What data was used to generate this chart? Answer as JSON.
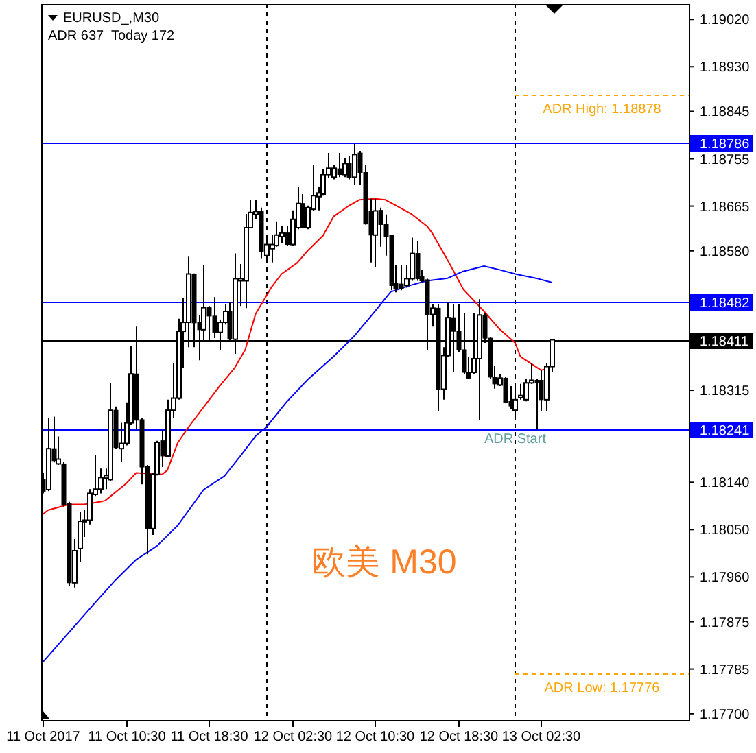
{
  "chart_data": {
    "type": "candlestick",
    "title": "EURUSD_,M30",
    "subtitle": "ADR 637  Today 172",
    "color": "#000000",
    "x": [
      "2017-10-11T02:30",
      "2017-10-11T03:00",
      "2017-10-11T03:30",
      "2017-10-11T04:00",
      "2017-10-11T04:30",
      "2017-10-11T05:00",
      "2017-10-11T05:30",
      "2017-10-11T06:00",
      "2017-10-11T06:30",
      "2017-10-11T07:00",
      "2017-10-11T07:30",
      "2017-10-11T08:00",
      "2017-10-11T08:30",
      "2017-10-11T09:00",
      "2017-10-11T09:30",
      "2017-10-11T10:00",
      "2017-10-11T10:30",
      "2017-10-11T11:00",
      "2017-10-11T11:30",
      "2017-10-11T12:00",
      "2017-10-11T12:30",
      "2017-10-11T13:00",
      "2017-10-11T13:30",
      "2017-10-11T14:00",
      "2017-10-11T14:30",
      "2017-10-11T15:00",
      "2017-10-11T15:30",
      "2017-10-11T16:00",
      "2017-10-11T16:30",
      "2017-10-11T17:00",
      "2017-10-11T17:30",
      "2017-10-11T18:00",
      "2017-10-11T18:30",
      "2017-10-11T19:00",
      "2017-10-11T19:30",
      "2017-10-11T20:00",
      "2017-10-11T20:30",
      "2017-10-11T21:00",
      "2017-10-11T21:30",
      "2017-10-11T22:00",
      "2017-10-11T22:30",
      "2017-10-11T23:00",
      "2017-10-11T23:30",
      "2017-10-12T00:00",
      "2017-10-12T00:30",
      "2017-10-12T01:00",
      "2017-10-12T01:30",
      "2017-10-12T02:00",
      "2017-10-12T02:30",
      "2017-10-12T03:00",
      "2017-10-12T03:30",
      "2017-10-12T04:00",
      "2017-10-12T04:30",
      "2017-10-12T05:00",
      "2017-10-12T05:30",
      "2017-10-12T06:00",
      "2017-10-12T06:30",
      "2017-10-12T07:00",
      "2017-10-12T07:30",
      "2017-10-12T08:00",
      "2017-10-12T08:30",
      "2017-10-12T09:00",
      "2017-10-12T09:30",
      "2017-10-12T10:00",
      "2017-10-12T10:30",
      "2017-10-12T11:00",
      "2017-10-12T11:30",
      "2017-10-12T12:00",
      "2017-10-12T12:30",
      "2017-10-12T13:00",
      "2017-10-12T13:30",
      "2017-10-12T14:00",
      "2017-10-12T14:30",
      "2017-10-12T15:00",
      "2017-10-12T15:30",
      "2017-10-12T16:00",
      "2017-10-12T16:30",
      "2017-10-12T17:00",
      "2017-10-12T17:30",
      "2017-10-12T18:00",
      "2017-10-12T18:30",
      "2017-10-12T19:00",
      "2017-10-12T19:30",
      "2017-10-12T20:00",
      "2017-10-12T20:30",
      "2017-10-12T21:00",
      "2017-10-12T21:30",
      "2017-10-12T22:00",
      "2017-10-12T22:30",
      "2017-10-12T23:00",
      "2017-10-12T23:30",
      "2017-10-13T00:00",
      "2017-10-13T00:30",
      "2017-10-13T01:00",
      "2017-10-13T01:30",
      "2017-10-13T02:00",
      "2017-10-13T02:30",
      "2017-10-13T03:00",
      "2017-10-13T03:30"
    ],
    "ohlc": [
      [
        1.18145,
        1.18158,
        1.18119,
        1.18123
      ],
      [
        1.18126,
        1.18262,
        1.18123,
        1.18204
      ],
      [
        1.18204,
        1.18265,
        1.18178,
        1.18181
      ],
      [
        1.18175,
        1.18227,
        1.18173,
        1.18184
      ],
      [
        1.18175,
        1.18179,
        1.18094,
        1.18097
      ],
      [
        1.181,
        1.18103,
        1.17943,
        1.17949
      ],
      [
        1.17949,
        1.18032,
        1.1794,
        1.1801
      ],
      [
        1.18014,
        1.18084,
        1.17988,
        1.18066
      ],
      [
        1.18065,
        1.18088,
        1.18036,
        1.18068
      ],
      [
        1.18068,
        1.18127,
        1.1806,
        1.18119
      ],
      [
        1.18117,
        1.18192,
        1.18114,
        1.18127
      ],
      [
        1.18127,
        1.18166,
        1.18119,
        1.18149
      ],
      [
        1.18148,
        1.18166,
        1.18127,
        1.18153
      ],
      [
        1.18145,
        1.18329,
        1.18143,
        1.18277
      ],
      [
        1.18277,
        1.18284,
        1.18204,
        1.18206
      ],
      [
        1.18204,
        1.18253,
        1.18179,
        1.18214
      ],
      [
        1.18214,
        1.18292,
        1.1821,
        1.18253
      ],
      [
        1.18253,
        1.18399,
        1.18249,
        1.18346
      ],
      [
        1.18346,
        1.18436,
        1.18242,
        1.18258
      ],
      [
        1.18259,
        1.18262,
        1.18136,
        1.18169
      ],
      [
        1.18171,
        1.18173,
        1.18003,
        1.18052
      ],
      [
        1.18052,
        1.18158,
        1.1804,
        1.18155
      ],
      [
        1.18155,
        1.18219,
        1.18153,
        1.18216
      ],
      [
        1.18219,
        1.18239,
        1.18169,
        1.1819
      ],
      [
        1.1819,
        1.18297,
        1.18188,
        1.18277
      ],
      [
        1.18277,
        1.18366,
        1.18262,
        1.183
      ],
      [
        1.183,
        1.18451,
        1.18297,
        1.18427
      ],
      [
        1.18427,
        1.18491,
        1.18358,
        1.18444
      ],
      [
        1.18444,
        1.18569,
        1.18397,
        1.18536
      ],
      [
        1.18536,
        1.18537,
        1.18397,
        1.18443
      ],
      [
        1.18444,
        1.18458,
        1.18372,
        1.1843
      ],
      [
        1.1843,
        1.18553,
        1.1841,
        1.18472
      ],
      [
        1.18472,
        1.18475,
        1.1841,
        1.18456
      ],
      [
        1.18456,
        1.18492,
        1.18414,
        1.18425
      ],
      [
        1.18425,
        1.18449,
        1.18392,
        1.18444
      ],
      [
        1.18444,
        1.18479,
        1.1844,
        1.18465
      ],
      [
        1.18465,
        1.18482,
        1.1841,
        1.18412
      ],
      [
        1.18412,
        1.18575,
        1.18384,
        1.18527
      ],
      [
        1.18523,
        1.18555,
        1.18475,
        1.18527
      ],
      [
        1.18523,
        1.1865,
        1.18471,
        1.18624
      ],
      [
        1.18624,
        1.18677,
        1.18623,
        1.18653
      ],
      [
        1.18649,
        1.18677,
        1.1864,
        1.18655
      ],
      [
        1.18655,
        1.18662,
        1.18566,
        1.18579
      ],
      [
        1.18571,
        1.1861,
        1.18559,
        1.18592
      ],
      [
        1.18584,
        1.1861,
        1.18558,
        1.18592
      ],
      [
        1.1859,
        1.18636,
        1.18588,
        1.1861
      ],
      [
        1.18607,
        1.18627,
        1.18595,
        1.18614
      ],
      [
        1.18614,
        1.18627,
        1.1859,
        1.18592
      ],
      [
        1.18592,
        1.18657,
        1.1859,
        1.1864
      ],
      [
        1.18624,
        1.18701,
        1.18621,
        1.1867
      ],
      [
        1.1867,
        1.18688,
        1.18623,
        1.18624
      ],
      [
        1.18624,
        1.18666,
        1.18621,
        1.18662
      ],
      [
        1.18659,
        1.18743,
        1.18656,
        1.18685
      ],
      [
        1.18683,
        1.18701,
        1.18657,
        1.1869
      ],
      [
        1.18688,
        1.18736,
        1.18685,
        1.18725
      ],
      [
        1.18725,
        1.18766,
        1.18718,
        1.18737
      ],
      [
        1.1872,
        1.18744,
        1.18716,
        1.18737
      ],
      [
        1.18736,
        1.18766,
        1.1872,
        1.18725
      ],
      [
        1.18725,
        1.18757,
        1.1872,
        1.18746
      ],
      [
        1.18746,
        1.1876,
        1.18716,
        1.1872
      ],
      [
        1.1872,
        1.18783,
        1.18705,
        1.18763
      ],
      [
        1.18766,
        1.1877,
        1.18705,
        1.18729
      ],
      [
        1.18729,
        1.18744,
        1.1863,
        1.18631
      ],
      [
        1.18656,
        1.18679,
        1.18558,
        1.1861
      ],
      [
        1.1861,
        1.18679,
        1.18549,
        1.18656
      ],
      [
        1.18657,
        1.18662,
        1.18588,
        1.1863
      ],
      [
        1.1863,
        1.18649,
        1.18571,
        1.18607
      ],
      [
        1.1861,
        1.1861,
        1.18505,
        1.18514
      ],
      [
        1.18518,
        1.18553,
        1.18501,
        1.18508
      ],
      [
        1.18517,
        1.18553,
        1.18505,
        1.18508
      ],
      [
        1.18514,
        1.18553,
        1.1851,
        1.18527
      ],
      [
        1.18527,
        1.18605,
        1.18523,
        1.18575
      ],
      [
        1.18575,
        1.18598,
        1.18523,
        1.18527
      ],
      [
        1.18531,
        1.18544,
        1.1852,
        1.18523
      ],
      [
        1.18525,
        1.18527,
        1.18392,
        1.18459
      ],
      [
        1.18459,
        1.18479,
        1.18436,
        1.18471
      ],
      [
        1.18471,
        1.18479,
        1.18275,
        1.18317
      ],
      [
        1.18317,
        1.18397,
        1.18297,
        1.18381
      ],
      [
        1.18381,
        1.18482,
        1.18378,
        1.18453
      ],
      [
        1.18453,
        1.18479,
        1.18349,
        1.18427
      ],
      [
        1.18427,
        1.18479,
        1.18388,
        1.18392
      ],
      [
        1.18392,
        1.18462,
        1.18345,
        1.18349
      ],
      [
        1.18349,
        1.18379,
        1.18336,
        1.18338
      ],
      [
        1.18349,
        1.18462,
        1.18345,
        1.18375
      ],
      [
        1.18375,
        1.18488,
        1.18258,
        1.18458
      ],
      [
        1.18458,
        1.18462,
        1.18405,
        1.18414
      ],
      [
        1.18414,
        1.18416,
        1.18336,
        1.1834
      ],
      [
        1.1834,
        1.18362,
        1.18318,
        1.18327
      ],
      [
        1.18325,
        1.18345,
        1.18323,
        1.18338
      ],
      [
        1.18338,
        1.1834,
        1.18291,
        1.18292
      ],
      [
        1.18294,
        1.18323,
        1.18279,
        1.18285
      ],
      [
        1.18277,
        1.18323,
        1.18258,
        1.18297
      ],
      [
        1.18301,
        1.18327,
        1.18297,
        1.18305
      ],
      [
        1.18297,
        1.18336,
        1.18294,
        1.18329
      ],
      [
        1.18329,
        1.18366,
        1.18327,
        1.18334
      ],
      [
        1.18334,
        1.18336,
        1.1824,
        1.18329
      ],
      [
        1.18334,
        1.18353,
        1.18275,
        1.18297
      ],
      [
        1.18297,
        1.18366,
        1.18275,
        1.1836
      ],
      [
        1.1836,
        1.18411,
        1.18349,
        1.18411
      ]
    ],
    "series": [
      {
        "type": "line",
        "color": "#ff0000",
        "x": [
          "2017-10-11T02:30",
          "2017-10-11T03:00",
          "2017-10-11T05:00",
          "2017-10-11T06:30",
          "2017-10-11T08:00",
          "2017-10-11T08:30",
          "2017-10-11T10:30",
          "2017-10-11T11:30",
          "2017-10-11T14:00",
          "2017-10-11T14:30",
          "2017-10-11T15:30",
          "2017-10-11T16:30",
          "2017-10-11T18:00",
          "2017-10-11T19:00",
          "2017-10-11T19:30",
          "2017-10-11T21:00",
          "2017-10-11T22:00",
          "2017-10-11T23:00",
          "2017-10-12T00:30",
          "2017-10-12T01:30",
          "2017-10-12T03:00",
          "2017-10-12T04:00",
          "2017-10-12T05:30",
          "2017-10-12T06:30",
          "2017-10-12T08:00",
          "2017-10-12T09:00",
          "2017-10-12T10:30",
          "2017-10-12T11:30",
          "2017-10-12T13:00",
          "2017-10-12T14:00",
          "2017-10-12T15:30",
          "2017-10-12T16:00",
          "2017-10-12T17:30",
          "2017-10-12T18:00",
          "2017-10-12T19:00",
          "2017-10-12T21:00",
          "2017-10-12T22:30",
          "2017-10-13T00:00",
          "2017-10-13T00:30",
          "2017-10-13T01:30",
          "2017-10-13T02:30",
          "2017-10-13T03:00"
        ],
        "values": [
          1.18079,
          1.18087,
          1.18098,
          1.18098,
          1.18103,
          1.18105,
          1.18137,
          1.18158,
          1.18155,
          1.18163,
          1.18215,
          1.18244,
          1.18283,
          1.18309,
          1.18322,
          1.18358,
          1.18392,
          1.1846,
          1.1851,
          1.18536,
          1.18557,
          1.1858,
          1.18609,
          1.18645,
          1.18666,
          1.18677,
          1.18679,
          1.18677,
          1.18661,
          1.1865,
          1.18627,
          1.18614,
          1.18562,
          1.18544,
          1.18507,
          1.18465,
          1.18431,
          1.18405,
          1.18379,
          1.18366,
          1.18353,
          1.18356
        ]
      },
      {
        "type": "line",
        "color": "#0000ff",
        "x": [
          "2017-10-11T02:30",
          "2017-10-11T07:30",
          "2017-10-11T09:30",
          "2017-10-11T11:30",
          "2017-10-11T13:30",
          "2017-10-11T15:30",
          "2017-10-11T18:00",
          "2017-10-11T20:00",
          "2017-10-11T21:30",
          "2017-10-11T23:00",
          "2017-10-12T00:00",
          "2017-10-12T02:00",
          "2017-10-12T04:00",
          "2017-10-12T06:30",
          "2017-10-12T08:30",
          "2017-10-12T10:30",
          "2017-10-12T12:00",
          "2017-10-12T14:00",
          "2017-10-12T15:30",
          "2017-10-12T17:30",
          "2017-10-12T19:00",
          "2017-10-12T21:00",
          "2017-10-12T22:30",
          "2017-10-13T00:00",
          "2017-10-13T02:00",
          "2017-10-13T03:30"
        ],
        "values": [
          1.17798,
          1.1791,
          1.17954,
          1.17993,
          1.18019,
          1.18058,
          1.18126,
          1.18152,
          1.18189,
          1.18228,
          1.18244,
          1.18293,
          1.18335,
          1.18379,
          1.18418,
          1.18465,
          1.18502,
          1.18515,
          1.18523,
          1.18528,
          1.18541,
          1.18551,
          1.18544,
          1.18536,
          1.18528,
          1.1852
        ]
      }
    ],
    "xlim": [
      "2017-10-11T02:21",
      "2017-10-13T16:43"
    ],
    "xticks": [
      {
        "value": "2017-10-11T02:30",
        "label": "11 Oct 2017"
      },
      {
        "value": "2017-10-11T10:30",
        "label": "11 Oct 10:30"
      },
      {
        "value": "2017-10-11T18:30",
        "label": "11 Oct 18:30"
      },
      {
        "value": "2017-10-12T02:30",
        "label": "12 Oct 02:30"
      },
      {
        "value": "2017-10-12T10:30",
        "label": "12 Oct 10:30"
      },
      {
        "value": "2017-10-12T18:30",
        "label": "12 Oct 18:30"
      },
      {
        "value": "2017-10-13T02:30",
        "label": "13 Oct 02:30"
      }
    ],
    "ylim": [
      1.17688,
      1.19049
    ],
    "yticks": [
      {
        "value": 1.1902,
        "label": "1.19020"
      },
      {
        "value": 1.1893,
        "label": "1.18930"
      },
      {
        "value": 1.18845,
        "label": "1.18845"
      },
      {
        "value": 1.18755,
        "label": "1.18755"
      },
      {
        "value": 1.18665,
        "label": "1.18665"
      },
      {
        "value": 1.1858,
        "label": "1.18580"
      },
      {
        "value": 1.18315,
        "label": "1.18315"
      },
      {
        "value": 1.1814,
        "label": "1.18140"
      },
      {
        "value": 1.1805,
        "label": "1.18050"
      },
      {
        "value": 1.1796,
        "label": "1.17960"
      },
      {
        "value": 1.17875,
        "label": "1.17875"
      },
      {
        "value": 1.17785,
        "label": "1.17785"
      },
      {
        "value": 1.177,
        "label": "1.17700"
      }
    ],
    "ref_lines": [
      {
        "axis": "x",
        "value": "2017-10-12T00:00",
        "color": "#000000",
        "line_style": "dashed"
      },
      {
        "axis": "x",
        "value": "2017-10-13T00:00",
        "color": "#000000",
        "line_style": "dashed"
      },
      {
        "axis": "y",
        "value": 1.18786,
        "label": "1.18786",
        "color": "#0000ff"
      },
      {
        "axis": "y",
        "value": 1.18482,
        "label": "1.18482",
        "color": "#0000ff"
      },
      {
        "axis": "y",
        "value": 1.18241,
        "label": "1.18241",
        "color": "#0000ff"
      },
      {
        "axis": "y",
        "value": 1.18411,
        "label": "1.18411",
        "color": "#000000"
      },
      {
        "axis": "y",
        "value": 1.18878,
        "label": "ADR High: 1.18878",
        "color": "#ffa500",
        "line_style": "dashed"
      },
      {
        "axis": "y",
        "value": 1.17776,
        "label": "ADR Low: 1.17776",
        "color": "#ffa500",
        "line_style": "dashed"
      }
    ],
    "annotations": [
      {
        "text": "ADR Start",
        "x": "2017-10-13T00:00",
        "y": 1.18241
      },
      "欧美 M30"
    ]
  }
}
